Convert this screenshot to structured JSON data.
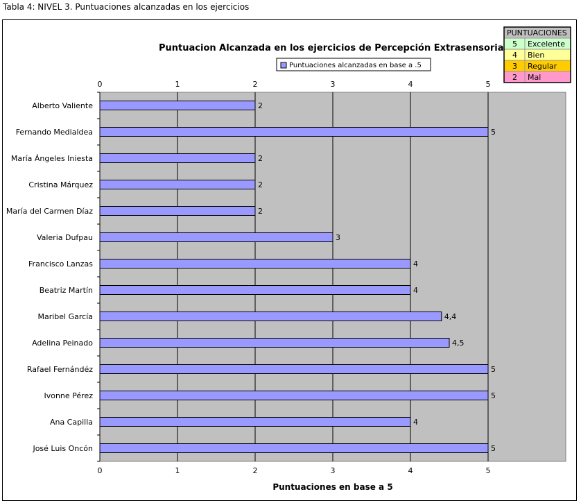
{
  "caption": "Tabla 4: NIVEL 3. Puntuaciones alcanzadas en los ejercicios",
  "chart_data": {
    "type": "bar",
    "orientation": "horizontal",
    "title": "Puntuacion Alcanzada en los ejercicios de Percepción Extrasensorial",
    "xlabel": "Puntuaciones en base a 5",
    "ylabel": "",
    "xlim": [
      0,
      6
    ],
    "ticks_top": [
      "0",
      "1",
      "2",
      "3",
      "4",
      "5"
    ],
    "ticks_bottom": [
      "0",
      "1",
      "2",
      "3",
      "4",
      "5"
    ],
    "grid": true,
    "legend_position": "top",
    "plot_background": "#c0c0c0",
    "bar_color": "#9999ff",
    "categories": [
      "Alberto Valiente",
      "Fernando Medialdea",
      "María Ángeles Iniesta",
      "Cristina Márquez",
      "María del Carmen Díaz",
      "Valeria Dufpau",
      "Francisco Lanzas",
      "Beatriz Martín",
      "Maribel García",
      "Adelina Peinado",
      "Rafael Fernándéz",
      "Ivonne Pérez",
      "Ana Capilla",
      "José Luis Oncón"
    ],
    "series": [
      {
        "name": "Puntuaciones alcanzadas en base a .5",
        "values": [
          2,
          5,
          2,
          2,
          2,
          3,
          4,
          4,
          4.4,
          4.5,
          5,
          5,
          4,
          5
        ],
        "labels": [
          "2",
          "5",
          "2",
          "2",
          "2",
          "3",
          "4",
          "4",
          "4,4",
          "4,5",
          "5",
          "5",
          "4",
          "5"
        ]
      }
    ]
  },
  "scale_table": {
    "header": "PUNTUACIONES",
    "rows": [
      {
        "score": "5",
        "label": "Excelente",
        "color": "#ccffcc"
      },
      {
        "score": "4",
        "label": "Bien",
        "color": "#ffff99"
      },
      {
        "score": "3",
        "label": "Regular",
        "color": "#ffcc00"
      },
      {
        "score": "2",
        "label": "Mal",
        "color": "#ff99cc"
      }
    ],
    "header_color": "#c0c0c0"
  }
}
